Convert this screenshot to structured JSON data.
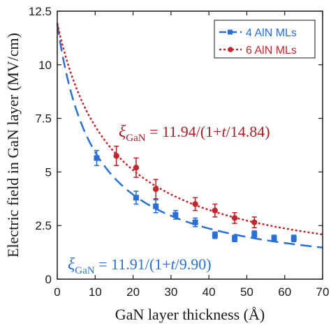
{
  "chart_data": {
    "type": "scatter",
    "xlabel": "GaN layer thickness (Å)",
    "ylabel": "Electric field in GaN layer (MV/cm)",
    "xlim": [
      0,
      70
    ],
    "ylim": [
      0,
      12.5
    ],
    "x_ticks": [
      "0",
      "10",
      "20",
      "30",
      "40",
      "50",
      "60",
      "70"
    ],
    "y_ticks": [
      "0",
      "2.5",
      "5",
      "7.5",
      "10",
      "12.5"
    ],
    "grid": false,
    "legend_position": "top-right",
    "series": [
      {
        "name": "4 AlN MLs",
        "color": "#2a6fd6",
        "marker": "square",
        "line": "long-dash",
        "fit": {
          "a": 11.91,
          "b": 9.9
        },
        "x": [
          10.4,
          20.8,
          26.0,
          31.2,
          36.4,
          41.6,
          46.8,
          52.0,
          57.2,
          62.4
        ],
        "y": [
          5.65,
          3.8,
          3.4,
          3.0,
          2.65,
          2.05,
          1.9,
          2.1,
          1.9,
          1.9
        ],
        "err": [
          0.35,
          0.3,
          0.3,
          0.2,
          0.2,
          0.15,
          0.15,
          0.15,
          0.15,
          0.15
        ]
      },
      {
        "name": "6 AlN MLs",
        "color": "#c0282d",
        "marker": "circle",
        "line": "dotted",
        "fit": {
          "a": 11.94,
          "b": 14.84
        },
        "x": [
          15.6,
          20.8,
          26.0,
          36.4,
          41.6,
          46.8,
          52.0
        ],
        "y": [
          5.75,
          5.2,
          4.2,
          3.5,
          3.2,
          2.85,
          2.65
        ],
        "err": [
          0.45,
          0.45,
          0.45,
          0.3,
          0.3,
          0.25,
          0.25
        ]
      }
    ],
    "annotations": {
      "red_formula": {
        "xi": "ξ",
        "sub": "GaN",
        "eq": " = 11.94/(1+",
        "t": "t",
        "tail": "/14.84)"
      },
      "blue_formula": {
        "xi": "ξ",
        "sub": "GaN",
        "eq": " = 11.91/(1+",
        "t": "t",
        "tail": "/9.90)"
      }
    }
  }
}
